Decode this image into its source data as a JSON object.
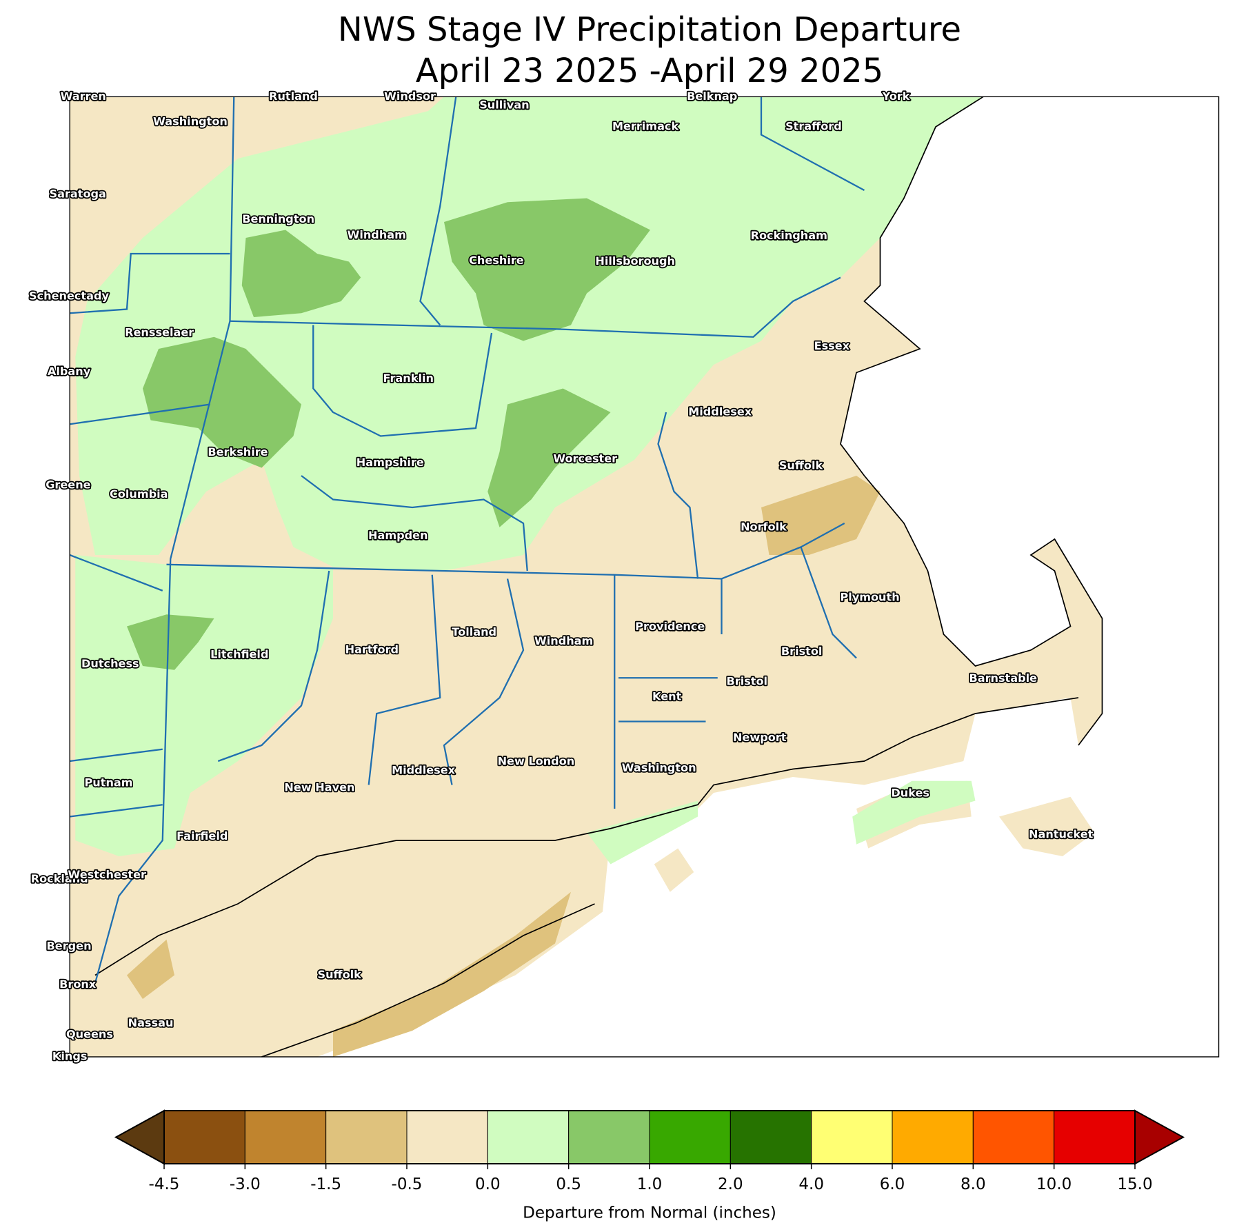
{
  "title": [
    "NWS Stage IV Precipitation Departure",
    "April 23 2025 -April 29 2025"
  ],
  "map": {
    "labels": [
      "Warren",
      "Rutland",
      "Windsor",
      "Sullivan",
      "Belknap",
      "York",
      "Washington",
      "Merrimack",
      "Strafford",
      "Saratoga",
      "Bennington",
      "Windham",
      "Rockingham",
      "Cheshire",
      "Hillsborough",
      "Schenectady",
      "Rensselaer",
      "Essex",
      "Albany",
      "Franklin",
      "Middlesex",
      "Berkshire",
      "Worcester",
      "Hampshire",
      "Suffolk",
      "Greene",
      "Columbia",
      "Norfolk",
      "Hampden",
      "Plymouth",
      "Providence",
      "Tolland",
      "Windham",
      "Hartford",
      "Bristol",
      "Litchfield",
      "Dutchess",
      "Barnstable",
      "Bristol",
      "Kent",
      "Newport",
      "New London",
      "Washington",
      "Middlesex",
      "Putnam",
      "New Haven",
      "Dukes",
      "Nantucket",
      "Fairfield",
      "Rockland",
      "Westchester",
      "Bergen",
      "Suffolk",
      "Bronx",
      "Nassau",
      "Queens",
      "Kings"
    ]
  },
  "colorbar": {
    "label": "Departure from Normal (inches)",
    "ticks": [
      -4.5,
      {
        "value": -3,
        "label": "-3.0"
      },
      -1.5,
      -0.5,
      {
        "value": 0,
        "label": "0.0"
      },
      0.5,
      {
        "value": 1,
        "label": "1.0"
      },
      {
        "value": 2,
        "label": "2.0"
      },
      {
        "value": 4,
        "label": "4.0"
      },
      {
        "value": 6,
        "label": "6.0"
      },
      {
        "value": 8,
        "label": "8.0"
      },
      {
        "value": 10,
        "label": "10.0"
      },
      {
        "value": 15,
        "label": "15.0"
      }
    ],
    "colors": [
      "#5c3a10",
      "#8b5010",
      "#c0842e",
      "#dfc27d",
      "#f5e7c4",
      "#d0fcc0",
      "#88c868",
      "#38a800",
      "#267300",
      "#ffff73",
      "#ffaa00",
      "#ff5500",
      "#e60000",
      "#a80000"
    ]
  }
}
